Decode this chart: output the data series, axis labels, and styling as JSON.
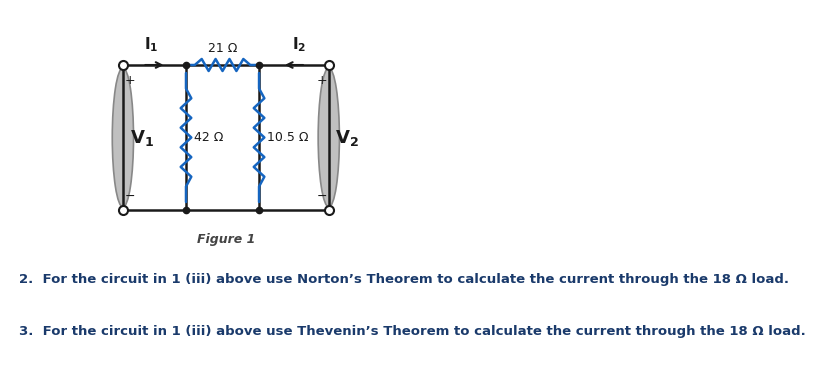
{
  "title": "Figure 1",
  "text2": "2.  For the circuit in 1 (iii) above use Norton’s Theorem to calculate the current through the 18 Ω load.",
  "text3": "3.  For the circuit in 1 (iii) above use Thevenin’s Theorem to calculate the current through the 18 Ω load.",
  "bg_color": "#ffffff",
  "circuit_color": "#1a1a1a",
  "resistor_color": "#1565c0",
  "text_color": "#1a3a6b",
  "fig_label_color": "#444444",
  "res_top_label": "21 Ω",
  "res_left_label": "42 Ω  10.5 Ω",
  "I1_label": "I",
  "I2_label": "I",
  "V1_label": "V",
  "V2_label": "V",
  "plus_minus_color": "#1a1a1a",
  "xl": 170,
  "xm1": 265,
  "xm2": 375,
  "xr": 480,
  "yt": 55,
  "yb": 200
}
